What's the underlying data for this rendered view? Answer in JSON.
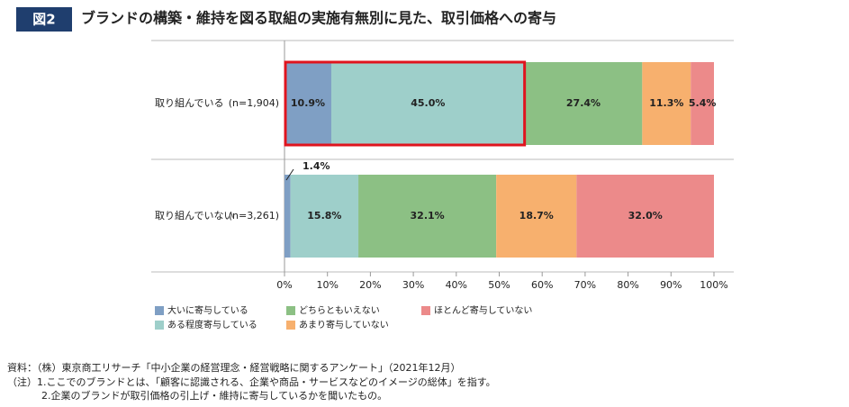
{
  "badge": "図2",
  "chart_data": {
    "type": "stacked-bar-horizontal",
    "title": "ブランドの構築・維持を図る取組の実施有無別に見た、取引価格への寄与",
    "categories": [
      "取り組んでいる",
      "取り組んでいない"
    ],
    "sample_sizes": [
      "(n=1,904)",
      "(n=3,261)"
    ],
    "series": [
      {
        "name": "大いに寄与している",
        "color": "#7f9fc4",
        "values": [
          10.9,
          1.4
        ],
        "value_labels": [
          "10.9%",
          "1.4%"
        ]
      },
      {
        "name": "ある程度寄与している",
        "color": "#9ecfca",
        "values": [
          45.0,
          15.8
        ],
        "value_labels": [
          "45.0%",
          "15.8%"
        ]
      },
      {
        "name": "どちらともいえない",
        "color": "#8cc084",
        "values": [
          27.4,
          32.1
        ],
        "value_labels": [
          "27.4%",
          "32.1%"
        ]
      },
      {
        "name": "あまり寄与していない",
        "color": "#f7b06e",
        "values": [
          11.3,
          18.7
        ],
        "value_labels": [
          "11.3%",
          "18.7%"
        ]
      },
      {
        "name": "ほとんど寄与していない",
        "color": "#ec8a8a",
        "values": [
          5.4,
          32.0
        ],
        "value_labels": [
          "5.4%",
          "32.0%"
        ]
      }
    ],
    "xlim": [
      0,
      100
    ],
    "xticks": [
      {
        "value": 0,
        "label": "0%"
      },
      {
        "value": 10,
        "label": "10%"
      },
      {
        "value": 20,
        "label": "20%"
      },
      {
        "value": 30,
        "label": "30%"
      },
      {
        "value": 40,
        "label": "40%"
      },
      {
        "value": 50,
        "label": "50%"
      },
      {
        "value": 60,
        "label": "60%"
      },
      {
        "value": 70,
        "label": "70%"
      },
      {
        "value": 80,
        "label": "80%"
      },
      {
        "value": 90,
        "label": "90%"
      },
      {
        "value": 100,
        "label": "100%"
      }
    ]
  },
  "notes": [
    "資料：（株）東京商工リサーチ「中小企業の経営理念・経営戦略に関するアンケート」（2021年12月）",
    "（注）1.ここでのブランドとは、「顧客に認識される、企業や商品・サービスなどのイメージの総体」を指す。",
    "2.企業のブランドが取引価格の引上げ・維持に寄与しているかを聞いたもの。"
  ]
}
